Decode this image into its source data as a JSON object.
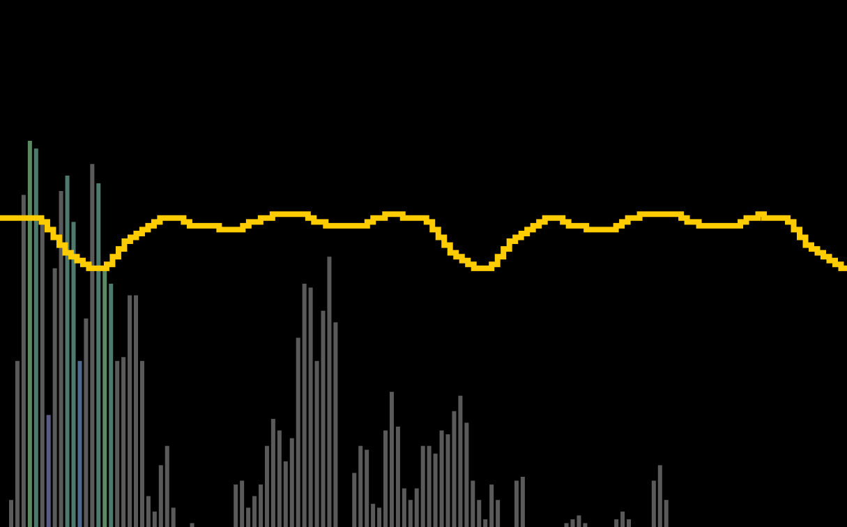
{
  "chart_data": {
    "type": "bar",
    "title": "",
    "xlabel": "",
    "ylabel": "",
    "ylim": [
      0,
      100
    ],
    "grid": false,
    "legend": "none",
    "background": "#000000",
    "bar_default_color": "#5a5a5a",
    "bar_highlight_colors": {
      "teal": "#4e7a6e",
      "green": "#5b8a62",
      "purple": "#5b5a86",
      "blue": "#4f6a8c"
    },
    "bars": {
      "values": [
        7,
        43,
        86,
        100,
        98,
        80,
        29,
        67,
        87,
        91,
        79,
        43,
        54,
        94,
        89,
        67,
        63,
        43,
        44,
        60,
        60,
        43,
        8,
        4,
        16,
        21,
        5,
        0,
        0,
        1,
        0,
        0,
        0,
        0,
        0,
        0,
        11,
        12,
        5,
        8,
        11,
        21,
        28,
        25,
        17,
        23,
        49,
        63,
        62,
        43,
        56,
        70,
        53,
        0,
        0,
        14,
        21,
        20,
        6,
        5,
        25,
        35,
        26,
        10,
        7,
        10,
        21,
        21,
        19,
        25,
        24,
        30,
        34,
        27,
        12,
        7,
        2,
        11,
        7,
        0,
        0,
        12,
        13,
        0,
        0,
        0,
        0,
        0,
        0,
        1,
        2,
        3,
        1,
        0,
        0,
        0,
        0,
        2,
        4,
        2,
        0,
        0,
        0,
        12,
        16,
        7,
        0,
        0,
        0,
        0,
        0,
        0,
        0,
        0,
        0,
        0,
        0,
        0,
        0,
        0,
        0,
        0,
        0,
        0,
        0,
        0,
        0,
        0,
        0,
        0,
        0,
        0,
        0,
        0
      ],
      "highlight": {
        "3": "green",
        "4": "teal",
        "6": "purple",
        "9": "teal",
        "10": "teal",
        "11": "blue",
        "14": "teal",
        "15": "green",
        "16": "teal"
      }
    },
    "line": {
      "name": "",
      "color": "#ffcc00",
      "values": [
        80,
        80,
        80,
        80,
        80,
        80,
        80,
        79,
        77,
        75,
        73,
        71,
        70,
        69,
        68,
        67,
        67,
        67,
        68,
        70,
        72,
        74,
        75,
        76,
        77,
        78,
        79,
        80,
        80,
        80,
        80,
        79,
        78,
        78,
        78,
        78,
        78,
        77,
        77,
        77,
        77,
        78,
        79,
        79,
        80,
        80,
        81,
        81,
        81,
        81,
        81,
        81,
        80,
        79,
        79,
        78,
        78,
        78,
        78,
        78,
        78,
        78,
        79,
        80,
        80,
        81,
        81,
        81,
        80,
        80,
        80,
        80,
        79,
        77,
        75,
        73,
        71,
        70,
        69,
        68,
        67,
        67,
        67,
        68,
        70,
        72,
        74,
        75,
        76,
        77,
        78,
        79,
        80,
        80,
        80,
        79,
        78,
        78,
        78,
        77,
        77,
        77,
        77,
        77,
        78,
        79,
        80,
        80,
        81,
        81,
        81,
        81,
        81,
        81,
        81,
        80,
        79,
        79,
        78,
        78,
        78,
        78,
        78,
        78,
        78,
        79,
        80,
        80,
        81,
        80,
        80,
        80,
        80,
        79,
        77,
        75,
        73,
        72,
        71,
        70,
        69,
        68,
        67
      ]
    }
  }
}
